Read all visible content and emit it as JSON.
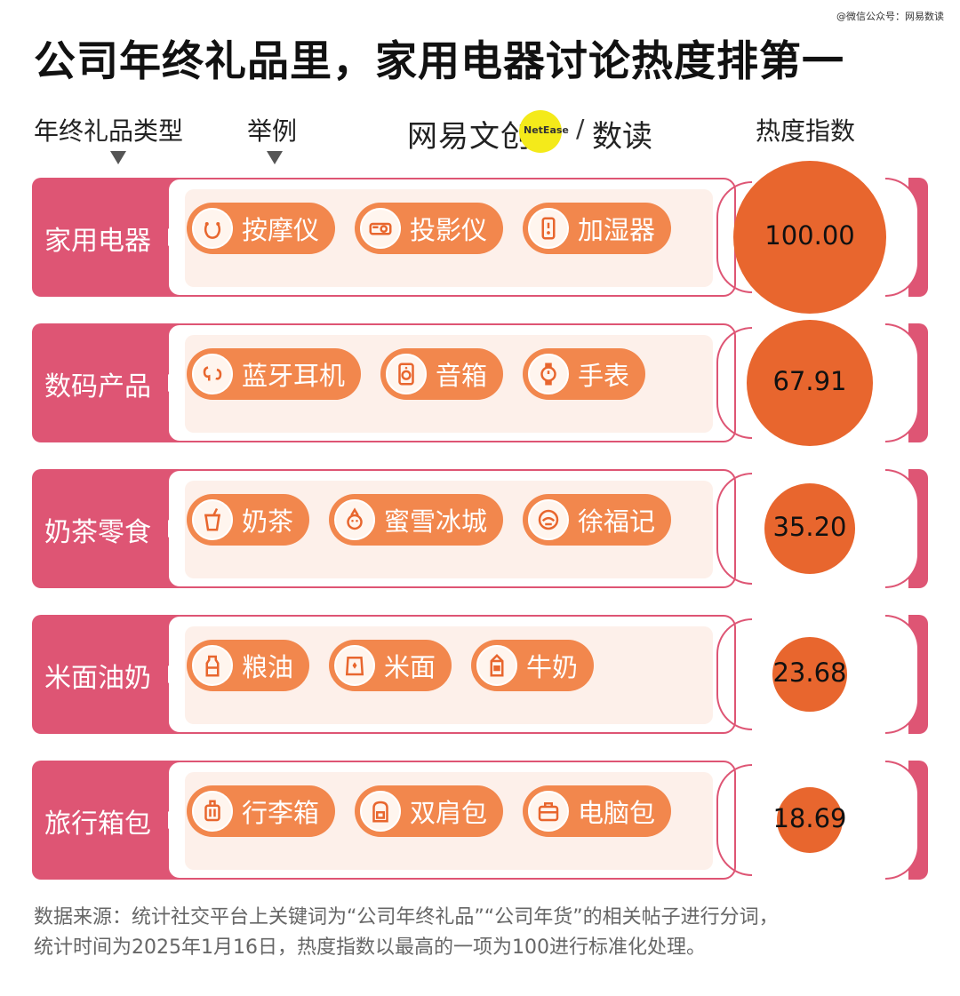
{
  "watermark": "@微信公众号：网易数读",
  "title": "公司年终礼品里，家用电器讨论热度排第一",
  "headers": {
    "category": "年终礼品类型",
    "examples": "举例",
    "index": "热度指数"
  },
  "logo": {
    "text_left": "网易文创",
    "badge": "NetEase",
    "slash": "/",
    "text_right": "数读"
  },
  "chart_data": {
    "type": "bubble",
    "categories": [
      "家用电器",
      "数码产品",
      "奶茶零食",
      "米面油奶",
      "旅行箱包"
    ],
    "values": [
      100.0,
      67.91,
      35.2,
      23.68,
      18.69
    ],
    "value_labels": [
      "100.00",
      "67.91",
      "35.20",
      "23.68",
      "18.69"
    ],
    "examples": [
      [
        {
          "label": "按摩仪",
          "icon": "neck-massager-icon"
        },
        {
          "label": "投影仪",
          "icon": "projector-icon"
        },
        {
          "label": "加湿器",
          "icon": "humidifier-icon"
        }
      ],
      [
        {
          "label": "蓝牙耳机",
          "icon": "earbuds-icon"
        },
        {
          "label": "音箱",
          "icon": "speaker-icon"
        },
        {
          "label": "手表",
          "icon": "watch-icon"
        }
      ],
      [
        {
          "label": "奶茶",
          "icon": "milk-tea-icon"
        },
        {
          "label": "蜜雪冰城",
          "icon": "mixue-mascot-icon"
        },
        {
          "label": "徐福记",
          "icon": "xufuji-logo-icon"
        }
      ],
      [
        {
          "label": "粮油",
          "icon": "oil-bottle-icon"
        },
        {
          "label": "米面",
          "icon": "rice-bag-icon"
        },
        {
          "label": "牛奶",
          "icon": "milk-carton-icon"
        }
      ],
      [
        {
          "label": "行李箱",
          "icon": "suitcase-icon"
        },
        {
          "label": "双肩包",
          "icon": "backpack-icon"
        },
        {
          "label": "电脑包",
          "icon": "laptop-bag-icon"
        }
      ]
    ]
  },
  "colors": {
    "category": "#de5574",
    "pill": "#f2874d",
    "bubble": "#e8662e",
    "panel_bg": "#fdf0ea"
  },
  "footnote": {
    "line1": "数据来源：统计社交平台上关键词为“公司年终礼品”“公司年货”的相关帖子进行分词，",
    "line2": "统计时间为2025年1月16日，热度指数以最高的一项为100进行标准化处理。"
  }
}
